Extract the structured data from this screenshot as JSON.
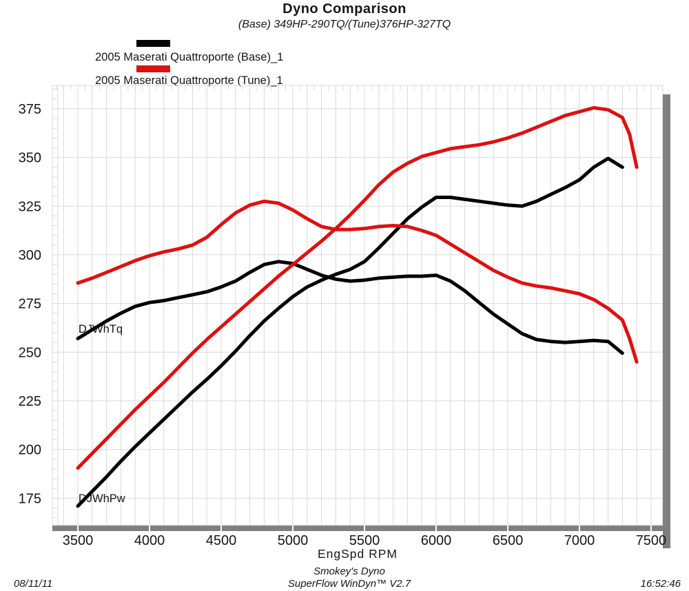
{
  "header": {
    "title": "Dyno Comparison",
    "subtitle": "(Base) 349HP-290TQ/(Tune)376HP-327TQ"
  },
  "legend": [
    {
      "label": "2005 Maserati Quattroporte (Base)_1",
      "color": "#000000"
    },
    {
      "label": "2005 Maserati Quattroporte (Tune)_1",
      "color": "#dd1111"
    }
  ],
  "footer": {
    "date": "08/11/11",
    "facility": "Smokey's Dyno",
    "software": "SuperFlow WinDyn™ V2.7",
    "time": "16:52:46"
  },
  "colors": {
    "base_run": "#000000",
    "tune_run": "#dd1111",
    "grid": "#d9d9d9",
    "axis_bar": "#7f7f7f",
    "text": "#15151d"
  },
  "chart_data": {
    "type": "line",
    "title": "Dyno Comparison",
    "subtitle": "(Base) 349HP-290TQ/(Tune)376HP-327TQ",
    "xlabel": "EngSpd  RPM",
    "ylabel": "",
    "xlim": [
      3322,
      7582
    ],
    "ylim": [
      161.3,
      387
    ],
    "x_ticks": [
      3500,
      4000,
      4500,
      5000,
      5500,
      6000,
      6500,
      7000,
      7500
    ],
    "y_ticks": [
      175,
      200,
      225,
      250,
      275,
      300,
      325,
      350,
      375
    ],
    "x_grid_step": 100,
    "x_minor_tick_step": 50,
    "y_minor_tick_step": 5,
    "grid": true,
    "legend_position": "top-left",
    "annotations": [
      {
        "text": "DJWhTq",
        "x": 3504,
        "y": 260
      },
      {
        "text": "DJWhPw",
        "x": 3504,
        "y": 173
      }
    ],
    "series": [
      {
        "id": "base-torque",
        "name": "DJWhTq (Base)",
        "run": "2005 Maserati Quattroporte (Base)_1",
        "color": "#000000",
        "points": [
          [
            3500,
            257
          ],
          [
            3600,
            261.5
          ],
          [
            3700,
            266
          ],
          [
            3800,
            270
          ],
          [
            3900,
            273.5
          ],
          [
            4000,
            275.5
          ],
          [
            4100,
            276.5
          ],
          [
            4200,
            278
          ],
          [
            4300,
            279.5
          ],
          [
            4400,
            281
          ],
          [
            4500,
            283.5
          ],
          [
            4600,
            286.5
          ],
          [
            4700,
            291
          ],
          [
            4800,
            295
          ],
          [
            4900,
            296.5
          ],
          [
            5000,
            295.5
          ],
          [
            5100,
            292.5
          ],
          [
            5200,
            289.5
          ],
          [
            5300,
            287.5
          ],
          [
            5400,
            286.5
          ],
          [
            5500,
            287
          ],
          [
            5600,
            288
          ],
          [
            5700,
            288.5
          ],
          [
            5800,
            289
          ],
          [
            5900,
            289
          ],
          [
            6000,
            289.5
          ],
          [
            6100,
            286.5
          ],
          [
            6200,
            281.5
          ],
          [
            6300,
            275.5
          ],
          [
            6400,
            269.5
          ],
          [
            6500,
            264.5
          ],
          [
            6600,
            259.5
          ],
          [
            6700,
            256.5
          ],
          [
            6800,
            255.5
          ],
          [
            6900,
            255
          ],
          [
            7000,
            255.5
          ],
          [
            7100,
            256
          ],
          [
            7200,
            255.5
          ],
          [
            7300,
            249.5
          ]
        ]
      },
      {
        "id": "base-power",
        "name": "DJWhPw (Base)",
        "run": "2005 Maserati Quattroporte (Base)_1",
        "color": "#000000",
        "points": [
          [
            3500,
            171
          ],
          [
            3600,
            178.5
          ],
          [
            3700,
            186
          ],
          [
            3800,
            194
          ],
          [
            3900,
            201.5
          ],
          [
            4000,
            208.5
          ],
          [
            4100,
            215.5
          ],
          [
            4200,
            222.5
          ],
          [
            4300,
            229.5
          ],
          [
            4400,
            236
          ],
          [
            4500,
            243
          ],
          [
            4600,
            250.5
          ],
          [
            4700,
            258.5
          ],
          [
            4800,
            266
          ],
          [
            4900,
            272.5
          ],
          [
            5000,
            278.5
          ],
          [
            5100,
            283.5
          ],
          [
            5200,
            287
          ],
          [
            5300,
            290
          ],
          [
            5400,
            292.5
          ],
          [
            5500,
            296.5
          ],
          [
            5600,
            303.5
          ],
          [
            5700,
            311
          ],
          [
            5800,
            318.5
          ],
          [
            5900,
            324.5
          ],
          [
            6000,
            329.5
          ],
          [
            6100,
            329.5
          ],
          [
            6200,
            328.5
          ],
          [
            6300,
            327.5
          ],
          [
            6400,
            326.5
          ],
          [
            6500,
            325.5
          ],
          [
            6600,
            325
          ],
          [
            6700,
            327.5
          ],
          [
            6800,
            331
          ],
          [
            6900,
            334.5
          ],
          [
            7000,
            338.5
          ],
          [
            7100,
            345
          ],
          [
            7200,
            349.5
          ],
          [
            7300,
            345
          ]
        ]
      },
      {
        "id": "tune-torque",
        "name": "DJWhTq (Tune)",
        "run": "2005 Maserati Quattroporte (Tune)_1",
        "color": "#dd1111",
        "points": [
          [
            3500,
            285.5
          ],
          [
            3600,
            288
          ],
          [
            3700,
            291
          ],
          [
            3800,
            294
          ],
          [
            3900,
            297
          ],
          [
            4000,
            299.5
          ],
          [
            4100,
            301.5
          ],
          [
            4200,
            303
          ],
          [
            4300,
            305
          ],
          [
            4400,
            309
          ],
          [
            4500,
            315.5
          ],
          [
            4600,
            321.5
          ],
          [
            4700,
            325.5
          ],
          [
            4800,
            327.5
          ],
          [
            4900,
            326.5
          ],
          [
            5000,
            323
          ],
          [
            5100,
            318.5
          ],
          [
            5200,
            314.5
          ],
          [
            5300,
            313
          ],
          [
            5400,
            313
          ],
          [
            5500,
            313.5
          ],
          [
            5600,
            314.5
          ],
          [
            5700,
            315
          ],
          [
            5800,
            314.5
          ],
          [
            5900,
            312.5
          ],
          [
            6000,
            310
          ],
          [
            6100,
            305.5
          ],
          [
            6200,
            301
          ],
          [
            6300,
            296.5
          ],
          [
            6400,
            292
          ],
          [
            6500,
            288.5
          ],
          [
            6600,
            285.5
          ],
          [
            6700,
            284
          ],
          [
            6800,
            283
          ],
          [
            6900,
            281.5
          ],
          [
            7000,
            280
          ],
          [
            7100,
            277
          ],
          [
            7200,
            272.5
          ],
          [
            7300,
            266.5
          ],
          [
            7350,
            257
          ],
          [
            7400,
            245
          ]
        ]
      },
      {
        "id": "tune-power",
        "name": "DJWhPw (Tune)",
        "run": "2005 Maserati Quattroporte (Tune)_1",
        "color": "#dd1111",
        "points": [
          [
            3500,
            190.5
          ],
          [
            3600,
            198
          ],
          [
            3700,
            205.5
          ],
          [
            3800,
            213
          ],
          [
            3900,
            220.5
          ],
          [
            4000,
            227.5
          ],
          [
            4100,
            234.5
          ],
          [
            4200,
            242
          ],
          [
            4300,
            249.5
          ],
          [
            4400,
            256.5
          ],
          [
            4500,
            263
          ],
          [
            4600,
            269.5
          ],
          [
            4700,
            276
          ],
          [
            4800,
            282.5
          ],
          [
            4900,
            289
          ],
          [
            5000,
            295
          ],
          [
            5100,
            301
          ],
          [
            5200,
            307
          ],
          [
            5300,
            313.5
          ],
          [
            5400,
            320.5
          ],
          [
            5500,
            328
          ],
          [
            5600,
            336
          ],
          [
            5700,
            342.5
          ],
          [
            5800,
            347
          ],
          [
            5900,
            350.5
          ],
          [
            6000,
            352.5
          ],
          [
            6100,
            354.5
          ],
          [
            6200,
            355.5
          ],
          [
            6300,
            356.5
          ],
          [
            6400,
            358
          ],
          [
            6500,
            360
          ],
          [
            6600,
            362.5
          ],
          [
            6700,
            365.5
          ],
          [
            6800,
            368.5
          ],
          [
            6900,
            371.5
          ],
          [
            7000,
            373.5
          ],
          [
            7100,
            375.5
          ],
          [
            7200,
            374.5
          ],
          [
            7300,
            370.5
          ],
          [
            7350,
            362
          ],
          [
            7400,
            345
          ]
        ]
      }
    ]
  }
}
